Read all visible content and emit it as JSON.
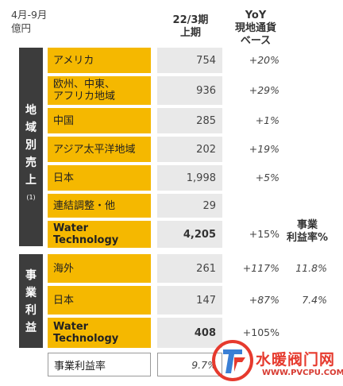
{
  "unit": {
    "line1": "4月-9月",
    "line2": "億円"
  },
  "headers": {
    "period_line1": "22/3期",
    "period_line2": "上期",
    "yoy_line1": "YoY",
    "yoy_line2": "現地通貨",
    "yoy_line3": "ベース",
    "margin_line1": "事業",
    "margin_line2": "利益率%"
  },
  "section_region": {
    "chars": [
      "地",
      "域",
      "別",
      "売",
      "上"
    ],
    "note": "(1)"
  },
  "section_profit": {
    "chars": [
      "事",
      "業",
      "利",
      "益"
    ]
  },
  "region_rows": [
    {
      "label": "アメリカ",
      "value": "754",
      "yoy": "+20%"
    },
    {
      "label_line1": "欧州、中東、",
      "label_line2": "アフリカ地域",
      "value": "936",
      "yoy": "+29%"
    },
    {
      "label": "中国",
      "value": "285",
      "yoy": "+1%"
    },
    {
      "label": "アジア太平洋地域",
      "value": "202",
      "yoy": "+19%"
    },
    {
      "label": "日本",
      "value": "1,998",
      "yoy": "+5%"
    },
    {
      "label": "連結調整・他",
      "value": "29",
      "yoy": ""
    },
    {
      "label_line1": "Water",
      "label_line2": "Technology",
      "value": "4,205",
      "yoy": "+15%"
    }
  ],
  "profit_rows": [
    {
      "label": "海外",
      "value": "261",
      "yoy": "+117%",
      "margin": "11.8%"
    },
    {
      "label": "日本",
      "value": "147",
      "yoy": "+87%",
      "margin": "7.4%"
    },
    {
      "label_line1": "Water",
      "label_line2": "Technology",
      "value": "408",
      "yoy": "+105%",
      "margin": ""
    }
  ],
  "total_row": {
    "label": "事業利益率",
    "value": "9.7%"
  },
  "watermark": {
    "text": "水暖阀门网",
    "url": "WWW.PVCPU.COM"
  },
  "colors": {
    "accent": "#f5b800",
    "side": "#3c3c3c",
    "value_bg": "#e9e9e9",
    "watermark": "#e63a2e"
  }
}
